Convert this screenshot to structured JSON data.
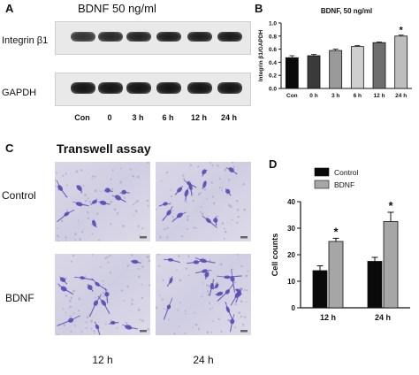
{
  "panel_a": {
    "letter": "A",
    "title": "BDNF 50 ng/ml",
    "rows": [
      {
        "label": "Integrin β1",
        "intensity": [
          0.85,
          0.9,
          0.92,
          0.95,
          0.95,
          0.97
        ]
      },
      {
        "label": "GAPDH",
        "intensity": [
          1,
          1,
          1,
          1,
          1,
          1
        ]
      }
    ],
    "lanes": [
      "Con",
      "0",
      "3 h",
      "6 h",
      "12 h",
      "24 h"
    ]
  },
  "panel_b": {
    "letter": "B",
    "chart_data": {
      "type": "bar",
      "title": "BDNF, 50 ng/ml",
      "ylabel": "Integrin β1/GAPDH",
      "xlabel": "",
      "categories": [
        "Con",
        "0 h",
        "3 h",
        "6 h",
        "12 h",
        "24 h"
      ],
      "values": [
        0.47,
        0.5,
        0.58,
        0.64,
        0.7,
        0.8
      ],
      "errors": [
        0.03,
        0.02,
        0.02,
        0.015,
        0.01,
        0.015
      ],
      "ylim": [
        0,
        1.0
      ],
      "yticks": [
        "0.0",
        "0.2",
        "0.4",
        "0.6",
        "0.8",
        "1.0"
      ],
      "colors": [
        "#0a0a0a",
        "#3a3a3a",
        "#9a9a9a",
        "#cfcfcf",
        "#6e6e6e",
        "#bdbdbd"
      ],
      "significance": [
        {
          "category": "24 h",
          "text": "*"
        }
      ]
    }
  },
  "panel_c": {
    "letter": "C",
    "title": "Transwell assay",
    "rows": [
      "Control",
      "BDNF"
    ],
    "cols": [
      "12 h",
      "24 h"
    ],
    "stain_color": "#5a4db3"
  },
  "panel_d": {
    "letter": "D",
    "chart_data": {
      "type": "bar",
      "ylabel": "Cell counts",
      "xlabel": "",
      "categories": [
        "12 h",
        "24 h"
      ],
      "series": [
        {
          "name": "Control",
          "values": [
            14,
            17.5
          ],
          "errors": [
            1.8,
            1.5
          ],
          "color": "#0a0a0a"
        },
        {
          "name": "BDNF",
          "values": [
            25,
            32.5
          ],
          "errors": [
            1.2,
            3.5
          ],
          "color": "#a6a6a6"
        }
      ],
      "ylim": [
        0,
        40
      ],
      "yticks": [
        "0",
        "10",
        "20",
        "30",
        "40"
      ],
      "legend": "top-left",
      "significance": [
        {
          "category": "12 h",
          "series": "BDNF",
          "text": "*"
        },
        {
          "category": "24 h",
          "series": "BDNF",
          "text": "*"
        }
      ]
    }
  }
}
